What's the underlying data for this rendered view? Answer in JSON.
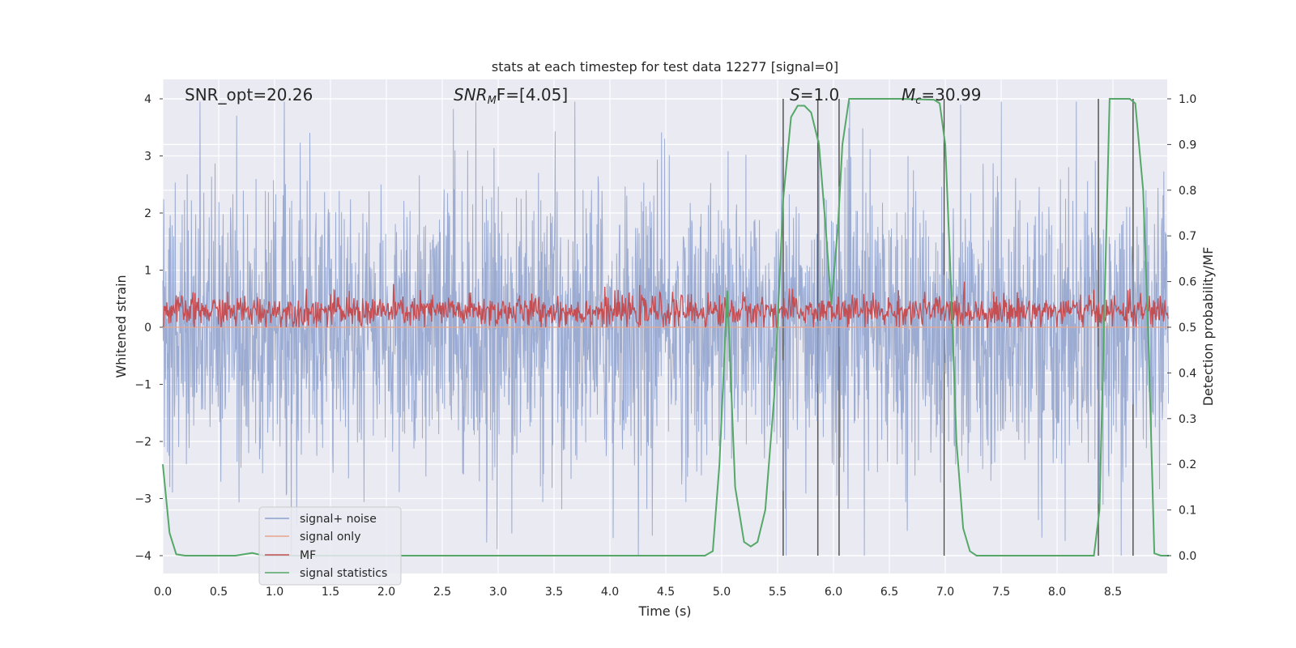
{
  "chart_data": {
    "type": "line",
    "title": "stats at each timestep for test data 12277 [signal=0]",
    "xlabel": "Time (s)",
    "ylabel": "Whitened strain",
    "y2label": "Detection probability/MF",
    "xlim": [
      0.0,
      9.0
    ],
    "ylim": [
      -4.4,
      4.4
    ],
    "y2lim": [
      -0.05,
      1.05
    ],
    "xticks": [
      "0.0",
      "0.5",
      "1.0",
      "1.5",
      "2.0",
      "2.5",
      "3.0",
      "3.5",
      "4.0",
      "4.5",
      "5.0",
      "5.5",
      "6.0",
      "6.5",
      "7.0",
      "7.5",
      "8.0",
      "8.5"
    ],
    "yticks": [
      "4",
      "3",
      "2",
      "1",
      "0",
      "−1",
      "−2",
      "−3",
      "−4"
    ],
    "y2ticks": [
      "1.0",
      "0.9",
      "0.8",
      "0.7",
      "0.6",
      "0.5",
      "0.4",
      "0.3",
      "0.2",
      "0.1",
      "0.0"
    ],
    "grid": true,
    "legend_position": "lower-left",
    "annotations": {
      "snr_opt": "SNR_opt=20.26",
      "snr_mf_base": "SNR",
      "snr_mf_sub": "M",
      "snr_mf_rest": "F=[4.05]",
      "s_italic": "S",
      "s_rest": "=1.0",
      "mc_italic": "M",
      "mc_sub": "c",
      "mc_rest": "=30.99"
    },
    "series": [
      {
        "name": "signal+ noise",
        "color": "#8da0cb",
        "axis": "left",
        "envelope_upper": 2.1,
        "envelope_lower": -2.1,
        "peak_max": 3.95,
        "peak_min": -4.0
      },
      {
        "name": "signal only",
        "color": "#e8a58c",
        "axis": "left",
        "values": "flat at 0"
      },
      {
        "name": "MF",
        "color": "#c44e52",
        "axis": "right",
        "center": 0.535,
        "range": [
          0.5,
          0.6
        ]
      },
      {
        "name": "signal statistics",
        "color": "#55a868",
        "axis": "right",
        "points": [
          [
            0.0,
            0.2
          ],
          [
            0.06,
            0.05
          ],
          [
            0.12,
            0.003
          ],
          [
            0.2,
            0.0
          ],
          [
            0.4,
            0.0
          ],
          [
            0.65,
            0.0
          ],
          [
            0.8,
            0.006
          ],
          [
            0.9,
            0.0
          ],
          [
            1.5,
            0.0
          ],
          [
            2.5,
            0.0
          ],
          [
            3.5,
            0.0
          ],
          [
            4.5,
            0.0
          ],
          [
            4.85,
            0.0
          ],
          [
            4.92,
            0.01
          ],
          [
            4.98,
            0.2
          ],
          [
            5.05,
            0.58
          ],
          [
            5.12,
            0.15
          ],
          [
            5.2,
            0.03
          ],
          [
            5.26,
            0.02
          ],
          [
            5.32,
            0.03
          ],
          [
            5.39,
            0.1
          ],
          [
            5.47,
            0.35
          ],
          [
            5.55,
            0.78
          ],
          [
            5.62,
            0.96
          ],
          [
            5.68,
            0.985
          ],
          [
            5.74,
            0.985
          ],
          [
            5.8,
            0.97
          ],
          [
            5.87,
            0.9
          ],
          [
            5.93,
            0.72
          ],
          [
            5.98,
            0.55
          ],
          [
            6.04,
            0.72
          ],
          [
            6.08,
            0.9
          ],
          [
            6.14,
            1.0
          ],
          [
            6.3,
            1.0
          ],
          [
            6.6,
            1.0
          ],
          [
            6.9,
            0.998
          ],
          [
            6.95,
            0.99
          ],
          [
            7.0,
            0.9
          ],
          [
            7.05,
            0.6
          ],
          [
            7.1,
            0.25
          ],
          [
            7.16,
            0.06
          ],
          [
            7.22,
            0.01
          ],
          [
            7.28,
            0.0
          ],
          [
            7.6,
            0.0
          ],
          [
            8.0,
            0.0
          ],
          [
            8.33,
            0.0
          ],
          [
            8.38,
            0.1
          ],
          [
            8.43,
            0.6
          ],
          [
            8.47,
            1.0
          ],
          [
            8.55,
            1.0
          ],
          [
            8.65,
            1.0
          ],
          [
            8.7,
            0.99
          ],
          [
            8.77,
            0.8
          ],
          [
            8.82,
            0.45
          ],
          [
            8.87,
            0.005
          ],
          [
            8.93,
            0.0
          ],
          [
            9.0,
            0.0
          ]
        ]
      }
    ],
    "vertical_lines": [
      5.55,
      5.86,
      6.05,
      6.99,
      8.37,
      8.68
    ],
    "vertical_line_color": "#555555"
  }
}
